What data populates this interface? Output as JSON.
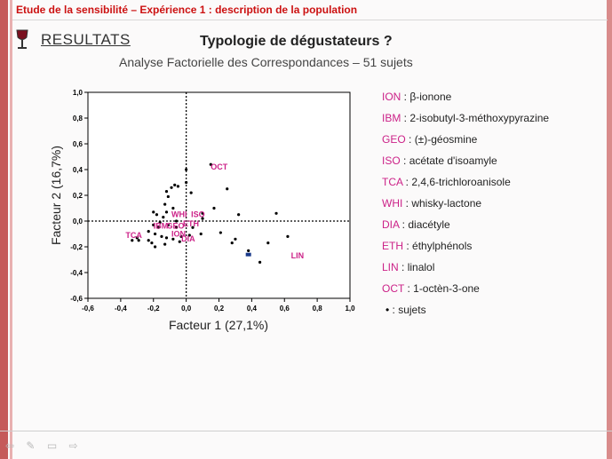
{
  "slide": {
    "header": "Etude de la sensibilité – Expérience 1 : description de la population",
    "section": "RESULTATS",
    "title": "Typologie de dégustateurs ?",
    "subtitle": "Analyse Factorielle des Correspondances  – 51 sujets"
  },
  "colors": {
    "accent": "#cc1111",
    "label": "#cc2288",
    "subject": "#000000",
    "stripe": "#c55a5a"
  },
  "legend": [
    {
      "code": "ION",
      "desc": "β-ionone"
    },
    {
      "code": "IBM",
      "desc": "2-isobutyl-3-méthoxypyrazine"
    },
    {
      "code": "GEO",
      "desc": "(±)-géosmine"
    },
    {
      "code": "ISO",
      "desc": "acétate d'isoamyle"
    },
    {
      "code": "TCA",
      "desc": "2,4,6-trichloroanisole"
    },
    {
      "code": "WHI",
      "desc": "whisky-lactone"
    },
    {
      "code": "DIA",
      "desc": "diacétyle"
    },
    {
      "code": "ETH",
      "desc": "éthylphénols"
    },
    {
      "code": "LIN",
      "desc": "linalol"
    },
    {
      "code": "OCT",
      "desc": "1-octèn-3-one"
    },
    {
      "code": "•",
      "desc": "sujets"
    }
  ],
  "nav": {
    "icons": [
      "prev-arrow-icon",
      "pen-icon",
      "menu-icon",
      "next-arrow-icon"
    ]
  },
  "chart_data": {
    "type": "scatter",
    "xlabel": "Facteur 1 (27,1%)",
    "ylabel": "Facteur 2 (16,7%)",
    "xlim": [
      -0.6,
      1.0
    ],
    "ylim": [
      -0.6,
      1.0
    ],
    "xticks": [
      "-0,6",
      "-0,4",
      "-0,2",
      "0,0",
      "0,2",
      "0,4",
      "0,6",
      "0,8",
      "1,0"
    ],
    "yticks": [
      "1,0",
      "0,8",
      "0,6",
      "0,4",
      "0,2",
      "0,0",
      "-0,2",
      "-0,4",
      "-0,6"
    ],
    "tick_values": [
      -0.6,
      -0.4,
      -0.2,
      0.0,
      0.2,
      0.4,
      0.6,
      0.8,
      1.0
    ],
    "reference_lines": "dashed at x=0 and y=0",
    "labels": [
      {
        "name": "OCT",
        "x": 0.15,
        "y": 0.4
      },
      {
        "name": "WHI",
        "x": -0.09,
        "y": 0.03
      },
      {
        "name": "ISO",
        "x": 0.03,
        "y": 0.03
      },
      {
        "name": "IBM",
        "x": -0.2,
        "y": -0.06
      },
      {
        "name": "GEO",
        "x": -0.12,
        "y": -0.06
      },
      {
        "name": "ETH",
        "x": -0.02,
        "y": -0.04
      },
      {
        "name": "ION",
        "x": -0.09,
        "y": -0.12
      },
      {
        "name": "DIA",
        "x": -0.03,
        "y": -0.16
      },
      {
        "name": "TCA",
        "x": -0.37,
        "y": -0.13
      },
      {
        "name": "LIN",
        "x": 0.64,
        "y": -0.29
      }
    ],
    "subjects": [
      [
        0.0,
        0.4
      ],
      [
        0.15,
        0.44
      ],
      [
        0.25,
        0.25
      ],
      [
        -0.07,
        0.28
      ],
      [
        -0.09,
        0.26
      ],
      [
        -0.05,
        0.27
      ],
      [
        -0.12,
        0.23
      ],
      [
        0.0,
        0.3
      ],
      [
        0.03,
        0.22
      ],
      [
        -0.11,
        0.19
      ],
      [
        -0.13,
        0.13
      ],
      [
        -0.08,
        0.1
      ],
      [
        -0.12,
        0.07
      ],
      [
        -0.2,
        0.07
      ],
      [
        -0.18,
        0.05
      ],
      [
        -0.14,
        0.03
      ],
      [
        0.1,
        0.06
      ],
      [
        0.1,
        0.02
      ],
      [
        0.32,
        0.05
      ],
      [
        0.55,
        0.06
      ],
      [
        -0.2,
        -0.03
      ],
      [
        -0.17,
        -0.05
      ],
      [
        -0.11,
        -0.03
      ],
      [
        -0.06,
        -0.05
      ],
      [
        -0.23,
        -0.08
      ],
      [
        -0.19,
        -0.1
      ],
      [
        -0.15,
        -0.12
      ],
      [
        -0.12,
        -0.13
      ],
      [
        -0.3,
        -0.13
      ],
      [
        -0.33,
        -0.15
      ],
      [
        -0.29,
        -0.15
      ],
      [
        -0.23,
        -0.15
      ],
      [
        -0.21,
        -0.17
      ],
      [
        -0.19,
        -0.2
      ],
      [
        -0.13,
        -0.18
      ],
      [
        -0.08,
        -0.14
      ],
      [
        -0.03,
        -0.12
      ],
      [
        -0.04,
        -0.16
      ],
      [
        0.02,
        -0.11
      ],
      [
        0.09,
        -0.1
      ],
      [
        0.21,
        -0.09
      ],
      [
        0.3,
        -0.14
      ],
      [
        0.28,
        -0.17
      ],
      [
        0.38,
        -0.23
      ],
      [
        0.45,
        -0.32
      ],
      [
        0.5,
        -0.17
      ],
      [
        0.62,
        -0.12
      ],
      [
        -0.16,
        -0.01
      ],
      [
        -0.06,
        0.0
      ],
      [
        0.04,
        -0.05
      ],
      [
        0.17,
        0.1
      ]
    ],
    "highlight": {
      "x": 0.38,
      "y": -0.26
    }
  }
}
